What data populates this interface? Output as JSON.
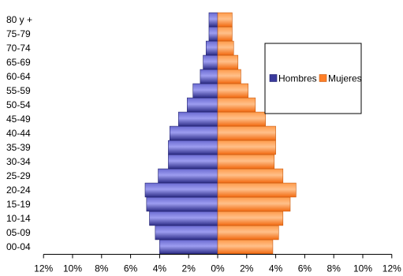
{
  "chart_data": {
    "type": "bar",
    "orientation": "horizontal-population-pyramid",
    "categories": [
      "00-04",
      "05-09",
      "10-14",
      "15-19",
      "20-24",
      "25-29",
      "30-34",
      "35-39",
      "40-44",
      "45-49",
      "50-54",
      "55-59",
      "60-64",
      "65-69",
      "70-74",
      "75-79",
      "80 y +"
    ],
    "series": [
      {
        "name": "Hombres",
        "side": "left",
        "color": "#3a3a9c",
        "values": [
          4.0,
          4.3,
          4.7,
          4.9,
          5.0,
          4.1,
          3.4,
          3.4,
          3.3,
          2.7,
          2.1,
          1.7,
          1.2,
          1.0,
          0.8,
          0.6,
          0.6
        ]
      },
      {
        "name": "Mujeres",
        "side": "right",
        "color": "#ff7f27",
        "values": [
          3.8,
          4.2,
          4.5,
          5.0,
          5.4,
          4.5,
          3.9,
          4.0,
          4.0,
          3.3,
          2.6,
          2.1,
          1.6,
          1.4,
          1.1,
          1.0,
          1.0
        ]
      }
    ],
    "xticks": [
      "12%",
      "10%",
      "8%",
      "6%",
      "4%",
      "2%",
      "0%",
      "2%",
      "4%",
      "6%",
      "8%",
      "10%",
      "12%"
    ],
    "xlim": [
      -12,
      12
    ],
    "legend": {
      "position": "right",
      "entries": [
        "Hombres",
        "Mujeres"
      ]
    },
    "grid": false
  }
}
